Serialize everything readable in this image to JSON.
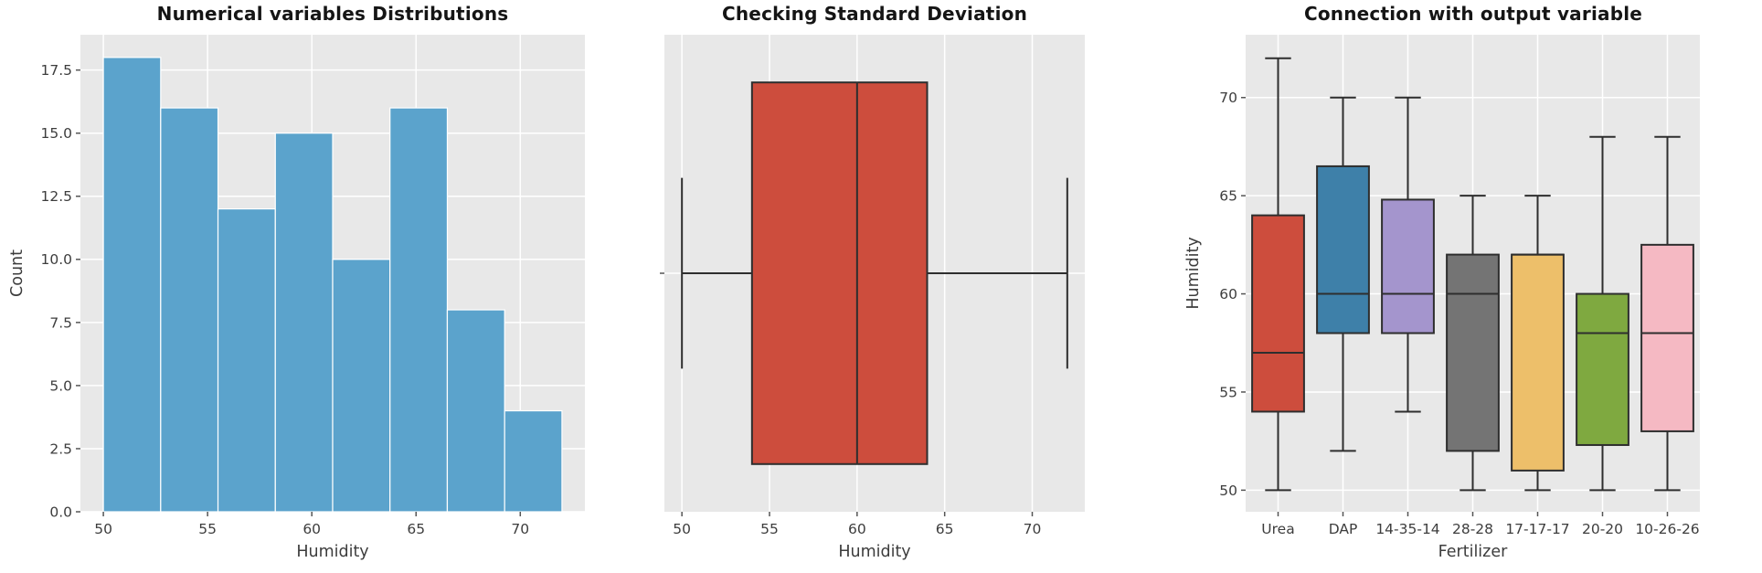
{
  "style": {
    "figure_bg": "#ffffff",
    "panel_bg": "#e8e8e8",
    "grid_color": "#ffffff",
    "box_edge_color": "#2e2e2e",
    "tick_text_color": "#3d3d3d",
    "title_color": "#151515",
    "histogram_bar_color": "#5ba3cc",
    "histogram_bar_edge": "#ffffff"
  },
  "chart_data": [
    {
      "type": "histogram",
      "title": "Numerical variables Distributions",
      "xlabel": "Humidity",
      "ylabel": "Count",
      "bins": {
        "start": 50,
        "width": 2.75,
        "end": 72
      },
      "counts": [
        18,
        16,
        12,
        15,
        10,
        16,
        8,
        4
      ],
      "xlim": [
        48.9,
        73.1
      ],
      "ylim": [
        0,
        18.9
      ],
      "xticks": [
        50,
        55,
        60,
        65,
        70
      ],
      "xtick_labels": [
        "50",
        "55",
        "60",
        "65",
        "70"
      ],
      "yticks": [
        0,
        2.5,
        5,
        7.5,
        10,
        12.5,
        15,
        17.5
      ],
      "ytick_labels": [
        "0.0",
        "2.5",
        "5.0",
        "7.5",
        "10.0",
        "12.5",
        "15.0",
        "17.5"
      ],
      "bar_color": "#5ba3cc",
      "grid": true,
      "legend": "none"
    },
    {
      "type": "boxplot_horizontal",
      "title": "Checking Standard Deviation",
      "xlabel": "Humidity",
      "box": {
        "whislo": 50,
        "q1": 54,
        "med": 60,
        "q3": 64,
        "whishi": 72
      },
      "color": "#cd4d3d",
      "xlim": [
        49,
        73
      ],
      "xticks": [
        50,
        55,
        60,
        65,
        70
      ],
      "xtick_labels": [
        "50",
        "55",
        "60",
        "65",
        "70"
      ],
      "grid": true,
      "legend": "none"
    },
    {
      "type": "boxplot_vertical",
      "title": "Connection with output variable",
      "xlabel": "Fertilizer",
      "ylabel": "Humidity",
      "ylim": [
        48.9,
        73.2
      ],
      "yticks": [
        50,
        55,
        60,
        65,
        70
      ],
      "ytick_labels": [
        "50",
        "55",
        "60",
        "65",
        "70"
      ],
      "categories": [
        "Urea",
        "DAP",
        "14-35-14",
        "28-28",
        "17-17-17",
        "20-20",
        "10-26-26"
      ],
      "boxes": [
        {
          "category": "Urea",
          "color": "#cd4d3d",
          "whislo": 50,
          "q1": 54,
          "med": 57,
          "q3": 64,
          "whishi": 72
        },
        {
          "category": "DAP",
          "color": "#3e80a9",
          "whislo": 52,
          "q1": 58,
          "med": 60,
          "q3": 66.5,
          "whishi": 70
        },
        {
          "category": "14-35-14",
          "color": "#a495cd",
          "whislo": 54,
          "q1": 58,
          "med": 60,
          "q3": 64.8,
          "whishi": 70
        },
        {
          "category": "28-28",
          "color": "#747474",
          "whislo": 50,
          "q1": 52,
          "med": 60,
          "q3": 62,
          "whishi": 65
        },
        {
          "category": "17-17-17",
          "color": "#edbf6a",
          "whislo": 50,
          "q1": 51,
          "med": 62,
          "q3": 62,
          "whishi": 65
        },
        {
          "category": "20-20",
          "color": "#7fa940",
          "whislo": 50,
          "q1": 52.3,
          "med": 58,
          "q3": 60,
          "whishi": 68
        },
        {
          "category": "10-26-26",
          "color": "#f5b9c3",
          "whislo": 50,
          "q1": 53,
          "med": 58,
          "q3": 62.5,
          "whishi": 68
        }
      ],
      "grid": true,
      "legend": "none"
    }
  ]
}
